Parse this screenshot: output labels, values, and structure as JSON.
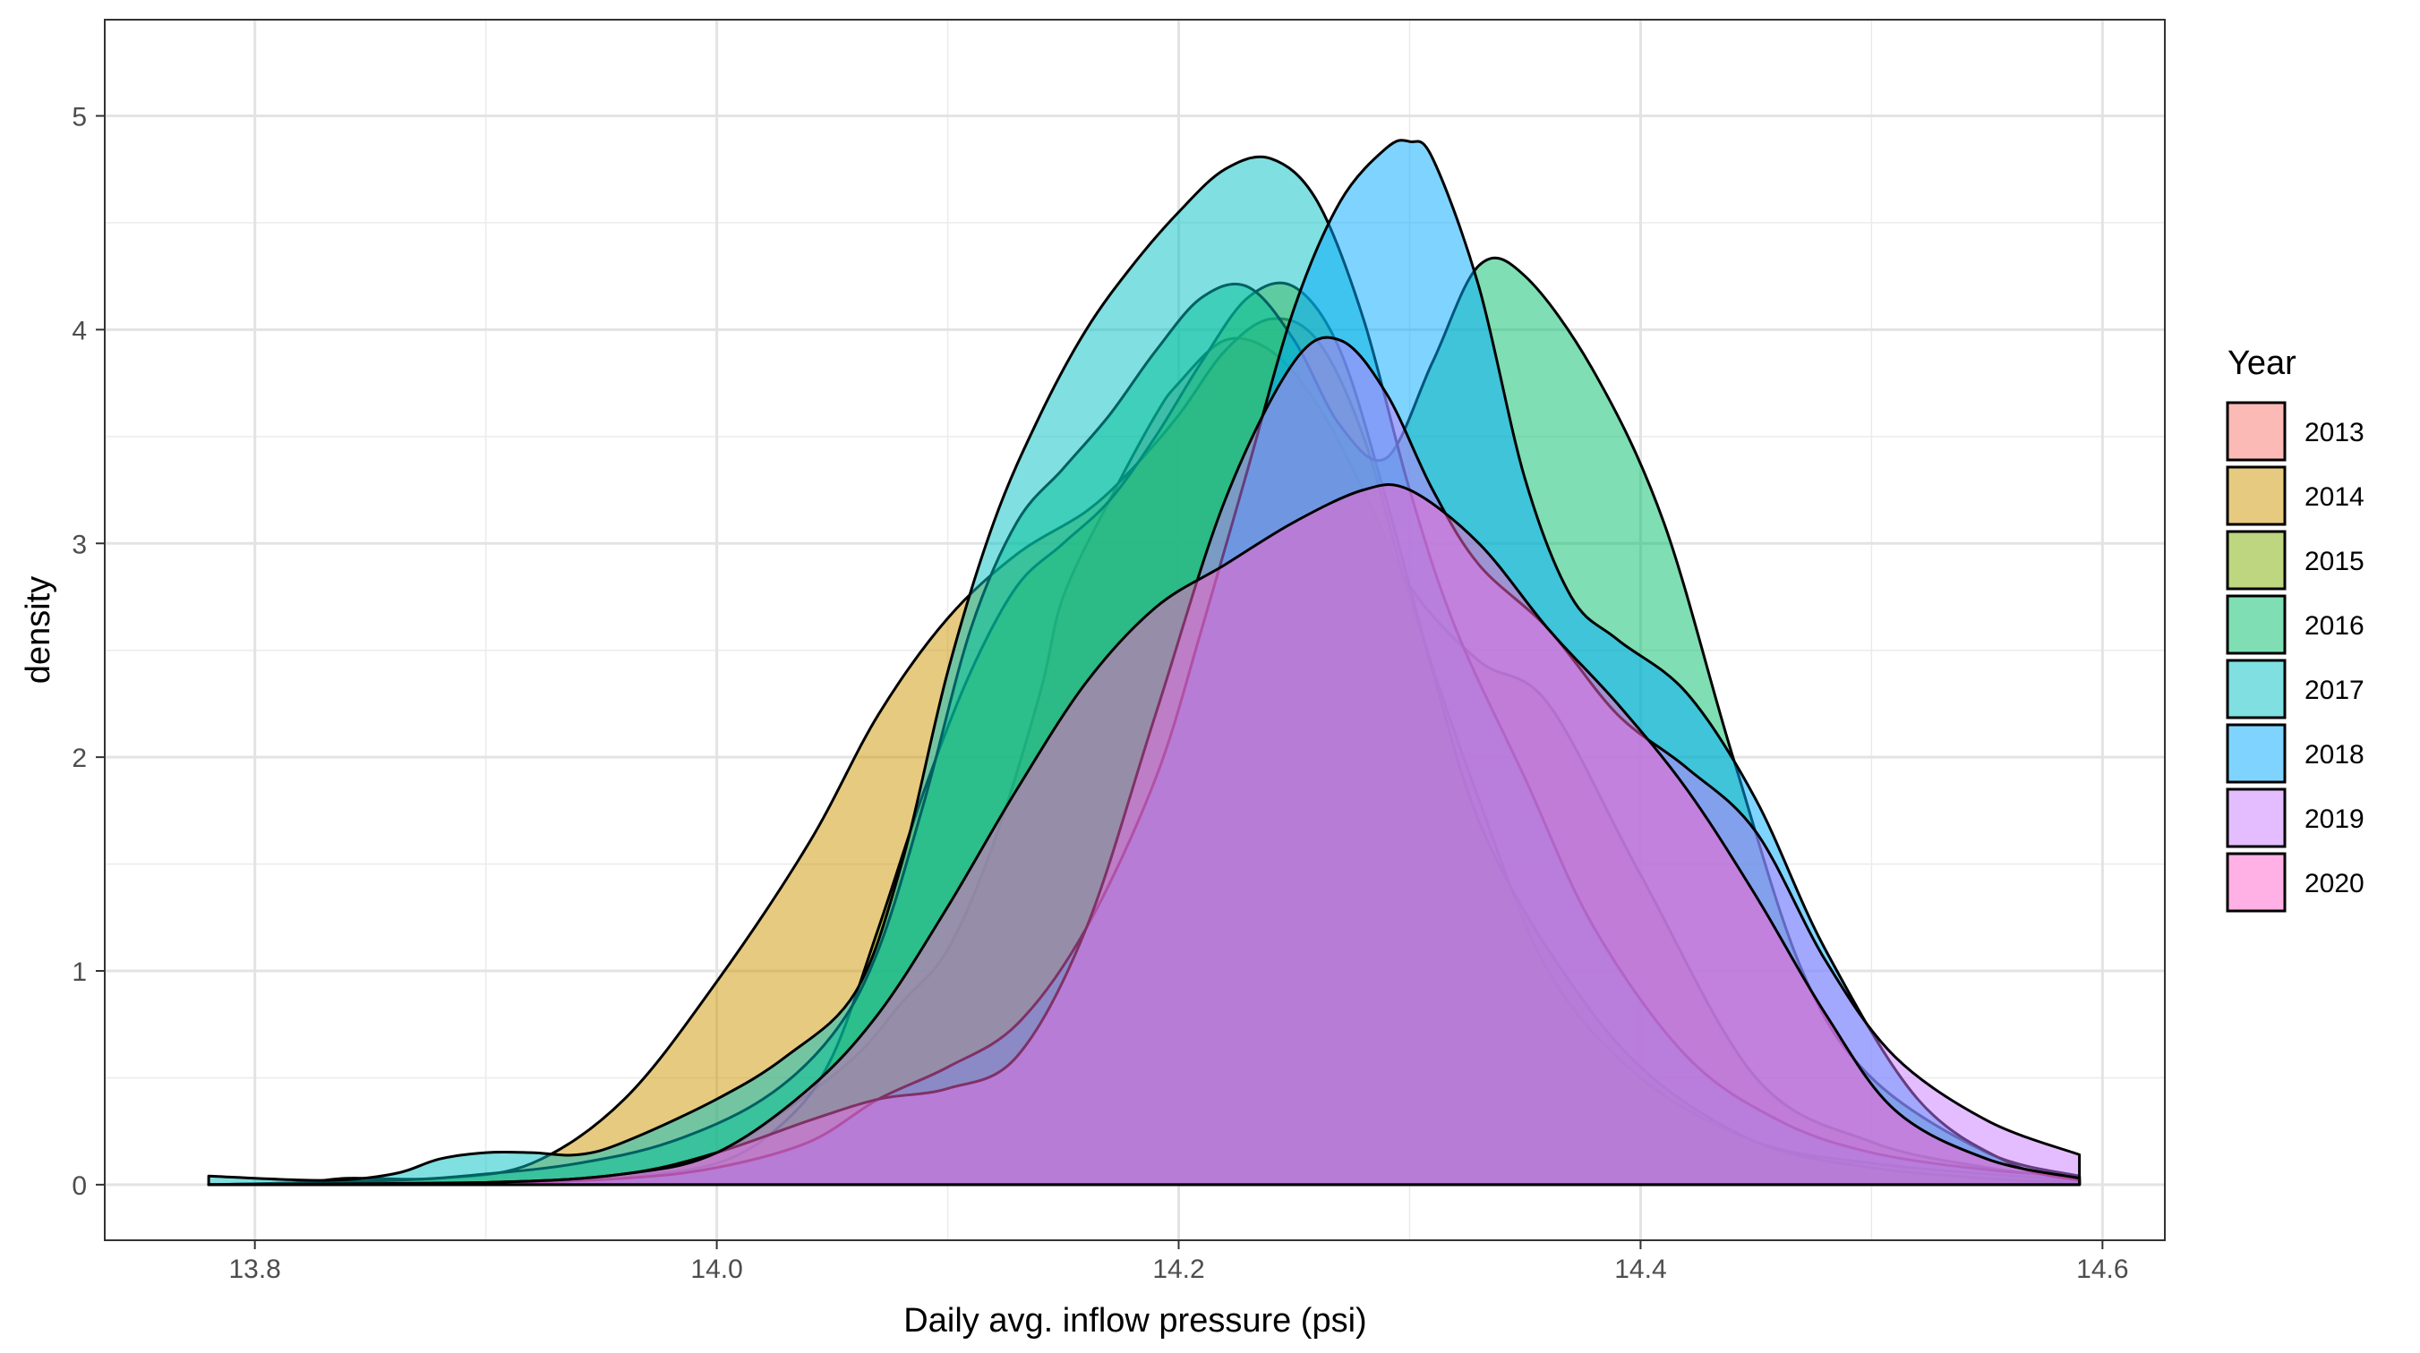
{
  "chart_data": {
    "type": "area",
    "subtype": "density",
    "xlabel": "Daily avg. inflow pressure (psi)",
    "ylabel": "density",
    "xlim": [
      13.735,
      14.627
    ],
    "ylim": [
      -0.26,
      5.45
    ],
    "x_ticks": [
      13.8,
      14.0,
      14.2,
      14.4,
      14.6
    ],
    "x_tick_labels": [
      "13.8",
      "14.0",
      "14.2",
      "14.4",
      "14.6"
    ],
    "y_ticks": [
      0,
      1,
      2,
      3,
      4,
      5
    ],
    "y_tick_labels": [
      "0",
      "1",
      "2",
      "3",
      "4",
      "5"
    ],
    "grid": true,
    "legend": {
      "title": "Year",
      "position": "right"
    },
    "fill_opacity": 0.5,
    "series": [
      {
        "name": "2013",
        "color": "#F8766D",
        "x": [
          13.78,
          13.9,
          13.96,
          14.0,
          14.03,
          14.06,
          14.08,
          14.1,
          14.12,
          14.14,
          14.15,
          14.17,
          14.19,
          14.2,
          14.22,
          14.24,
          14.26,
          14.28,
          14.3,
          14.33,
          14.36,
          14.4,
          14.45,
          14.5,
          14.55,
          14.59
        ],
        "y": [
          0,
          0,
          0.05,
          0.15,
          0.35,
          0.6,
          0.85,
          1.1,
          1.6,
          2.3,
          2.75,
          3.2,
          3.6,
          3.75,
          3.95,
          3.9,
          3.65,
          3.25,
          2.8,
          2.45,
          2.25,
          1.45,
          0.5,
          0.2,
          0.08,
          0.03
        ]
      },
      {
        "name": "2014",
        "color": "#CD9600",
        "x": [
          13.78,
          13.82,
          13.84,
          13.88,
          13.92,
          13.96,
          14.0,
          14.04,
          14.07,
          14.1,
          14.13,
          14.16,
          14.18,
          14.2,
          14.22,
          14.24,
          14.26,
          14.28,
          14.3,
          14.33,
          14.36,
          14.4,
          14.45,
          14.5,
          14.55,
          14.59
        ],
        "y": [
          0,
          0.01,
          0.03,
          0.03,
          0.1,
          0.4,
          0.95,
          1.6,
          2.2,
          2.65,
          2.95,
          3.15,
          3.35,
          3.6,
          3.9,
          4.05,
          3.95,
          3.5,
          2.75,
          1.8,
          1.0,
          0.5,
          0.2,
          0.1,
          0.05,
          0.02
        ]
      },
      {
        "name": "2015",
        "color": "#7CAE00",
        "x": [
          13.78,
          13.9,
          13.95,
          14.0,
          14.03,
          14.05,
          14.07,
          14.09,
          14.11,
          14.13,
          14.15,
          14.17,
          14.19,
          14.21,
          14.23,
          14.25,
          14.27,
          14.29,
          14.31,
          14.33,
          14.36,
          14.4,
          14.45,
          14.5,
          14.55,
          14.59
        ],
        "y": [
          0,
          0,
          0.03,
          0.1,
          0.3,
          0.6,
          1.2,
          1.85,
          2.4,
          2.8,
          3.0,
          3.2,
          3.5,
          3.85,
          4.15,
          4.2,
          3.9,
          3.2,
          2.4,
          1.7,
          1.1,
          0.55,
          0.2,
          0.08,
          0.03,
          0.01
        ]
      },
      {
        "name": "2016",
        "color": "#00BE67",
        "x": [
          13.78,
          13.86,
          13.9,
          13.94,
          13.98,
          14.02,
          14.05,
          14.07,
          14.09,
          14.11,
          14.13,
          14.15,
          14.17,
          14.19,
          14.21,
          14.23,
          14.25,
          14.27,
          14.29,
          14.31,
          14.33,
          14.35,
          14.38,
          14.41,
          14.44,
          14.47,
          14.5,
          14.55,
          14.59
        ],
        "y": [
          0,
          0.02,
          0.05,
          0.1,
          0.2,
          0.4,
          0.7,
          1.1,
          1.8,
          2.6,
          3.1,
          3.35,
          3.6,
          3.9,
          4.15,
          4.2,
          3.95,
          3.55,
          3.4,
          3.85,
          4.3,
          4.25,
          3.8,
          3.1,
          2.0,
          1.0,
          0.5,
          0.15,
          0.04
        ]
      },
      {
        "name": "2017",
        "color": "#00BFC4",
        "x": [
          13.78,
          13.83,
          13.86,
          13.88,
          13.9,
          13.92,
          13.94,
          13.96,
          14.0,
          14.03,
          14.06,
          14.08,
          14.1,
          14.12,
          14.14,
          14.16,
          14.18,
          14.2,
          14.22,
          14.24,
          14.26,
          14.28,
          14.3,
          14.32,
          14.35,
          14.38,
          14.42,
          14.46,
          14.5,
          14.55,
          14.59
        ],
        "y": [
          0.04,
          0.02,
          0.05,
          0.12,
          0.15,
          0.15,
          0.14,
          0.2,
          0.4,
          0.6,
          0.9,
          1.5,
          2.4,
          3.1,
          3.6,
          4.0,
          4.3,
          4.55,
          4.75,
          4.8,
          4.6,
          4.05,
          3.25,
          2.6,
          1.9,
          1.2,
          0.6,
          0.3,
          0.15,
          0.07,
          0.04
        ]
      },
      {
        "name": "2018",
        "color": "#00A9FF",
        "x": [
          13.78,
          13.9,
          13.96,
          14.0,
          14.04,
          14.07,
          14.1,
          14.13,
          14.16,
          14.19,
          14.21,
          14.23,
          14.25,
          14.27,
          14.29,
          14.3,
          14.31,
          14.33,
          14.35,
          14.37,
          14.39,
          14.42,
          14.45,
          14.48,
          14.52,
          14.56,
          14.59
        ],
        "y": [
          0,
          0.01,
          0.03,
          0.08,
          0.2,
          0.4,
          0.55,
          0.75,
          1.2,
          1.9,
          2.6,
          3.35,
          4.1,
          4.6,
          4.85,
          4.88,
          4.8,
          4.2,
          3.3,
          2.75,
          2.55,
          2.3,
          1.8,
          1.1,
          0.4,
          0.1,
          0.02
        ]
      },
      {
        "name": "2019",
        "color": "#C77CFF",
        "x": [
          13.78,
          13.9,
          13.96,
          14.0,
          14.04,
          14.07,
          14.1,
          14.13,
          14.16,
          14.19,
          14.22,
          14.25,
          14.27,
          14.29,
          14.31,
          14.33,
          14.36,
          14.39,
          14.42,
          14.45,
          14.48,
          14.51,
          14.55,
          14.59
        ],
        "y": [
          0,
          0.01,
          0.05,
          0.15,
          0.3,
          0.4,
          0.45,
          0.6,
          1.2,
          2.2,
          3.2,
          3.85,
          3.95,
          3.7,
          3.25,
          2.9,
          2.6,
          2.2,
          1.95,
          1.65,
          1.05,
          0.6,
          0.3,
          0.14
        ]
      },
      {
        "name": "2020",
        "color": "#FF61CC",
        "x": [
          13.78,
          13.9,
          13.96,
          14.0,
          14.04,
          14.07,
          14.1,
          14.13,
          14.16,
          14.19,
          14.22,
          14.25,
          14.28,
          14.3,
          14.33,
          14.36,
          14.39,
          14.42,
          14.45,
          14.48,
          14.51,
          14.55,
          14.59
        ],
        "y": [
          0,
          0.01,
          0.05,
          0.15,
          0.45,
          0.8,
          1.3,
          1.85,
          2.35,
          2.7,
          2.9,
          3.1,
          3.25,
          3.25,
          3.0,
          2.6,
          2.25,
          1.85,
          1.35,
          0.8,
          0.35,
          0.12,
          0.03
        ]
      }
    ]
  }
}
